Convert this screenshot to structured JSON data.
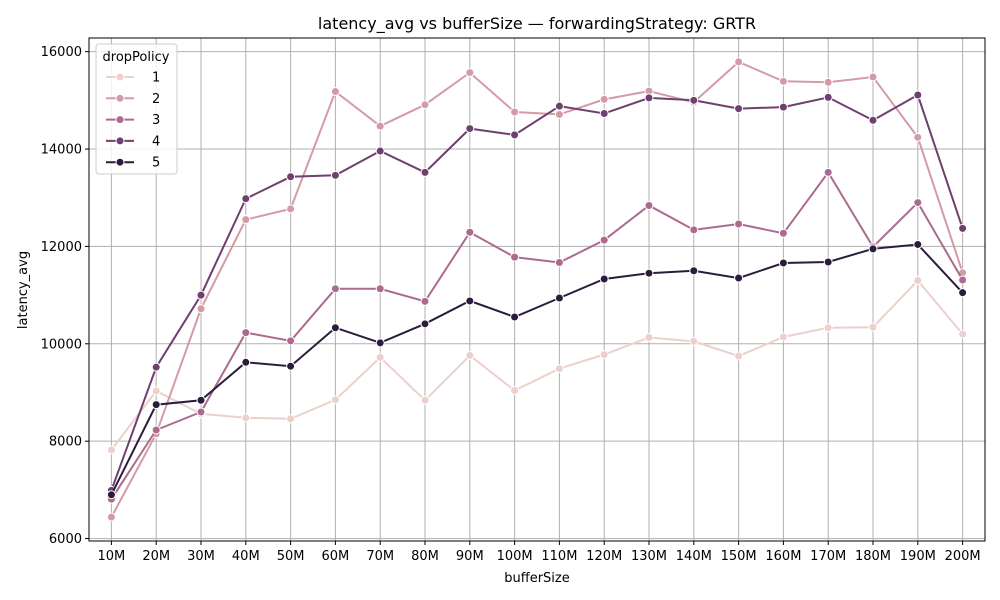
{
  "chart_data": {
    "type": "line",
    "title": "latency_avg vs bufferSize — forwardingStrategy: GRTR",
    "xlabel": "bufferSize",
    "ylabel": "latency_avg",
    "categories": [
      "10M",
      "20M",
      "30M",
      "40M",
      "50M",
      "60M",
      "70M",
      "80M",
      "90M",
      "100M",
      "110M",
      "120M",
      "130M",
      "140M",
      "150M",
      "160M",
      "170M",
      "180M",
      "190M",
      "200M"
    ],
    "ylim": [
      5950,
      16280
    ],
    "yticks": [
      6000,
      8000,
      10000,
      12000,
      14000,
      16000
    ],
    "grid": true,
    "legend": {
      "title": "dropPolicy",
      "position": "top-left"
    },
    "series": [
      {
        "name": "1",
        "color": "#ecd0cc",
        "values": [
          7820,
          9030,
          8560,
          8480,
          8460,
          8850,
          9720,
          8840,
          9760,
          9040,
          9490,
          9780,
          10130,
          10050,
          9750,
          10140,
          10330,
          10340,
          11300,
          10200
        ]
      },
      {
        "name": "2",
        "color": "#d49aa8",
        "values": [
          6440,
          8150,
          10720,
          12550,
          12770,
          15180,
          14470,
          14910,
          15570,
          14760,
          14710,
          15020,
          15190,
          14960,
          15790,
          15390,
          15370,
          15480,
          14240,
          11460
        ]
      },
      {
        "name": "3",
        "color": "#ac6a8f",
        "values": [
          6810,
          8230,
          8600,
          10230,
          10060,
          11130,
          11130,
          10870,
          12290,
          11780,
          11670,
          12130,
          12840,
          12340,
          12460,
          12270,
          13520,
          11990,
          12900,
          11310
        ]
      },
      {
        "name": "4",
        "color": "#6f3f6e",
        "values": [
          6990,
          9520,
          11000,
          12980,
          13430,
          13460,
          13960,
          13520,
          14420,
          14290,
          14880,
          14730,
          15050,
          15000,
          14830,
          14860,
          15060,
          14590,
          15110,
          12370
        ]
      },
      {
        "name": "5",
        "color": "#2b1c3c",
        "values": [
          6900,
          8750,
          8840,
          9620,
          9540,
          10330,
          10020,
          10410,
          10880,
          10550,
          10940,
          11330,
          11450,
          11500,
          11350,
          11660,
          11680,
          11950,
          12040,
          11050
        ]
      }
    ]
  }
}
